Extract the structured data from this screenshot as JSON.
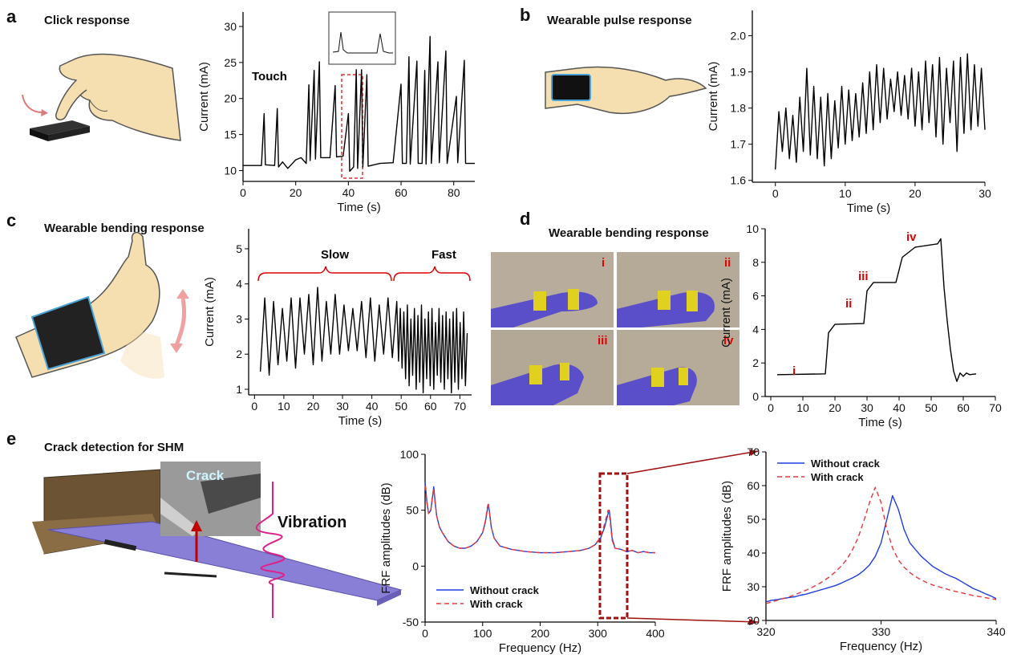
{
  "panels": [
    {
      "label": "a",
      "title": "Click response"
    },
    {
      "label": "b",
      "title": "Wearable pulse response"
    },
    {
      "label": "c",
      "title": "Wearable bending response"
    },
    {
      "label": "d",
      "title": "Wearable bending response"
    },
    {
      "label": "e",
      "title": "Crack detection for SHM"
    }
  ],
  "photo_labels": [
    "i",
    "ii",
    "iii",
    "iv"
  ],
  "illustration": {
    "crack": "Crack",
    "vibration": "Vibration"
  },
  "chart_data": [
    {
      "type": "line",
      "x_label": "Time (s)",
      "y_label": "Current (mA)",
      "annotations": [
        "Touch"
      ],
      "annotation_color": "#000000",
      "color": "#000000",
      "xlim": [
        0,
        88
      ],
      "ylim": [
        8.5,
        32
      ],
      "xticks": [
        0,
        20,
        40,
        60,
        80
      ],
      "yticks": [
        10,
        15,
        20,
        25,
        30
      ],
      "x": [
        0,
        7,
        8,
        8.5,
        12,
        13,
        13.5,
        15,
        17,
        20,
        22,
        24,
        25,
        25.5,
        27,
        27.5,
        29,
        29.5,
        33,
        35,
        35.5,
        38,
        40,
        40.5,
        42,
        43,
        43.5,
        45,
        45.5,
        47,
        47.5,
        52,
        57,
        60,
        60.5,
        62,
        63,
        63.5,
        66,
        66.5,
        68,
        69,
        69.5,
        71,
        71.5,
        74,
        74.5,
        77,
        77.5,
        81,
        81.5,
        84,
        84.5,
        88
      ],
      "values": [
        10.7,
        10.7,
        17.9,
        10.8,
        10.7,
        18.6,
        10.5,
        11.2,
        10.3,
        11.5,
        11.8,
        11.0,
        21.9,
        11.4,
        23.9,
        11.6,
        25.1,
        11.8,
        11.8,
        21.8,
        11.9,
        12.0,
        17.9,
        9.9,
        10.5,
        24.0,
        10.3,
        24.0,
        10.5,
        23.3,
        10.6,
        11.0,
        11.1,
        22.0,
        11.0,
        11.0,
        25.8,
        10.9,
        25.2,
        11.0,
        11.0,
        23.9,
        10.9,
        28.6,
        11.0,
        25.1,
        11.1,
        26.6,
        11.0,
        20.3,
        11.1,
        25.3,
        11.0,
        11.0
      ]
    },
    {
      "type": "line",
      "x_label": "Time (s)",
      "y_label": "Current (mA)",
      "color": "#000000",
      "xlim": [
        -3.3,
        30
      ],
      "ylim": [
        1.595,
        2.07
      ],
      "xticks": [
        0,
        10,
        20,
        30
      ],
      "yticks": [
        1.6,
        1.7,
        1.8,
        1.9,
        {
          "value": 2,
          "label": "2.0"
        }
      ],
      "x": [
        0,
        0.5,
        1,
        1.5,
        2,
        2.5,
        3,
        3.5,
        4,
        4.5,
        5,
        5.5,
        6,
        6.5,
        7,
        7.5,
        8,
        8.5,
        9,
        9.5,
        10,
        10.5,
        11,
        11.5,
        12,
        12.5,
        13,
        13.5,
        14,
        14.5,
        15,
        15.5,
        16,
        16.5,
        17,
        17.5,
        18,
        18.5,
        19,
        19.5,
        20,
        20.5,
        21,
        21.5,
        22,
        22.5,
        23,
        23.5,
        24,
        24.5,
        25,
        25.5,
        26,
        26.5,
        27,
        27.5,
        28,
        28.5,
        29,
        29.5,
        30
      ],
      "values": [
        1.63,
        1.79,
        1.68,
        1.8,
        1.66,
        1.78,
        1.65,
        1.83,
        1.68,
        1.91,
        1.67,
        1.86,
        1.66,
        1.83,
        1.64,
        1.84,
        1.66,
        1.82,
        1.69,
        1.86,
        1.7,
        1.85,
        1.71,
        1.84,
        1.72,
        1.87,
        1.73,
        1.9,
        1.74,
        1.92,
        1.76,
        1.91,
        1.77,
        1.88,
        1.79,
        1.9,
        1.78,
        1.89,
        1.77,
        1.91,
        1.75,
        1.9,
        1.74,
        1.93,
        1.76,
        1.92,
        1.72,
        1.94,
        1.7,
        1.91,
        1.76,
        1.93,
        1.68,
        1.94,
        1.73,
        1.95,
        1.74,
        1.92,
        1.75,
        1.91,
        1.74
      ]
    },
    {
      "type": "line",
      "x_label": "Time (s)",
      "y_label": "Current (mA)",
      "annotations": [
        "Slow",
        "Fast"
      ],
      "annotation_color": "#000000",
      "color": "#000000",
      "xlim": [
        -2,
        74
      ],
      "ylim": [
        0.84,
        5.57
      ],
      "xticks": [
        0,
        10,
        20,
        30,
        40,
        50,
        60,
        70
      ],
      "yticks": [
        1,
        2,
        3,
        4,
        5
      ],
      "x": [
        2,
        3.5,
        5,
        6.5,
        8,
        9.5,
        11,
        12.5,
        14,
        15.5,
        17,
        18.5,
        20,
        21.5,
        23,
        24.5,
        26,
        27.5,
        29,
        30.5,
        32,
        33.5,
        35,
        36.5,
        38,
        39.5,
        41,
        42.5,
        44,
        45.5,
        47,
        48.5,
        49.1,
        49.7,
        50.3,
        50.9,
        51.5,
        52.1,
        52.7,
        53.3,
        53.9,
        54.5,
        55.1,
        55.7,
        56.3,
        56.9,
        57.5,
        58.1,
        58.7,
        59.3,
        59.9,
        60.5,
        61.1,
        61.7,
        62.3,
        62.9,
        63.5,
        64.1,
        64.7,
        65.3,
        65.9,
        66.5,
        67.1,
        67.7,
        68.3,
        68.9,
        69.5,
        70.1,
        70.7,
        71.3,
        71.9,
        72.5
      ],
      "values": [
        1.5,
        3.6,
        1.4,
        3.5,
        1.7,
        3.3,
        1.8,
        3.6,
        1.6,
        3.6,
        2.0,
        3.7,
        1.7,
        3.9,
        1.8,
        3.5,
        2.0,
        3.7,
        2.0,
        3.4,
        2.1,
        3.3,
        2.1,
        3.5,
        1.9,
        3.6,
        1.8,
        3.4,
        2.0,
        3.6,
        1.9,
        3.5,
        1.8,
        3.3,
        1.6,
        3.2,
        1.3,
        3.4,
        1.1,
        3.0,
        1.4,
        3.3,
        1.0,
        3.1,
        1.2,
        3.4,
        0.9,
        3.0,
        1.3,
        3.2,
        1.1,
        3.3,
        1.0,
        2.9,
        1.4,
        3.3,
        1.2,
        3.1,
        1.0,
        3.2,
        1.3,
        3.0,
        0.9,
        3.2,
        1.2,
        3.3,
        1.0,
        2.9,
        1.3,
        3.2,
        1.1,
        2.6
      ]
    },
    {
      "type": "line",
      "x_label": "Time (s)",
      "y_label": "Current (mA)",
      "annotations": [
        "i",
        "ii",
        "iii",
        "iv"
      ],
      "annotation_color": "#e00000",
      "color": "#000000",
      "xlim": [
        -1.75,
        70
      ],
      "ylim": [
        0,
        10
      ],
      "xticks": [
        0,
        10,
        20,
        30,
        40,
        50,
        60,
        70
      ],
      "yticks": [
        0,
        2,
        4,
        6,
        8,
        10
      ],
      "x": [
        2,
        17,
        18,
        20,
        29,
        30,
        32,
        39,
        41,
        45,
        52,
        53,
        54,
        55,
        56,
        57,
        58,
        59,
        60,
        61,
        62,
        64
      ],
      "values": [
        1.3,
        1.35,
        3.8,
        4.3,
        4.35,
        6.3,
        6.8,
        6.8,
        8.3,
        8.9,
        9.1,
        9.4,
        6.5,
        4.5,
        2.8,
        1.5,
        0.9,
        1.4,
        1.2,
        1.4,
        1.3,
        1.35
      ]
    },
    {
      "type": "line",
      "x_label": "Frequency (Hz)",
      "y_label": "FRF amplitudes (dB)",
      "legend": "lower left",
      "xlim": [
        0,
        400
      ],
      "ylim": [
        -50,
        100
      ],
      "xticks": [
        0,
        100,
        200,
        300,
        400
      ],
      "yticks": [
        -50,
        0,
        50,
        100
      ],
      "x": [
        0,
        3,
        6,
        10,
        13,
        15,
        17,
        20,
        25,
        30,
        40,
        50,
        60,
        70,
        80,
        90,
        100,
        105,
        108,
        110,
        112,
        115,
        120,
        130,
        150,
        175,
        200,
        225,
        250,
        270,
        285,
        295,
        305,
        312,
        318,
        320,
        322,
        325,
        330,
        340,
        350,
        360,
        370,
        380,
        390,
        400
      ],
      "series": [
        {
          "name": "Without crack",
          "color": "#1f3fe0",
          "dashed": false,
          "values": [
            75,
            58,
            47,
            50,
            62,
            71,
            60,
            45,
            35,
            30,
            22,
            18,
            16,
            16,
            18,
            22,
            30,
            40,
            50,
            55,
            48,
            35,
            25,
            18,
            15,
            13,
            12,
            12,
            13,
            14,
            16,
            19,
            25,
            35,
            47,
            50,
            42,
            25,
            16,
            15,
            13,
            14,
            12,
            13,
            12,
            12
          ]
        },
        {
          "name": "With crack",
          "color": "#e8383d",
          "dashed": true,
          "values": [
            72,
            57,
            47,
            51,
            64,
            69,
            58,
            45,
            35,
            30,
            22,
            18,
            16,
            16,
            18,
            22,
            30,
            41,
            52,
            57,
            47,
            35,
            25,
            18,
            15,
            13,
            12,
            12,
            13,
            14,
            16,
            19,
            26,
            38,
            50,
            47,
            38,
            23,
            16,
            15,
            13,
            14,
            12,
            13,
            12,
            12
          ]
        }
      ]
    },
    {
      "type": "line",
      "x_label": "Frequency (Hz)",
      "y_label": "FRF amplitudes (dB)",
      "legend": "upper left",
      "xlim": [
        320,
        340
      ],
      "ylim": [
        20,
        70
      ],
      "xticks": [
        320,
        330,
        340
      ],
      "yticks": [
        20,
        30,
        40,
        50,
        60,
        70
      ],
      "x": [
        320,
        320.5,
        321,
        321.5,
        322,
        322.5,
        323,
        323.5,
        324,
        324.5,
        325,
        325.5,
        326,
        326.5,
        327,
        327.5,
        328,
        328.5,
        329,
        329.5,
        330,
        330.5,
        331,
        331.5,
        332,
        332.5,
        333,
        333.5,
        334,
        334.5,
        335,
        335.5,
        336,
        336.5,
        337,
        337.5,
        338,
        338.5,
        339,
        339.5,
        340
      ],
      "series": [
        {
          "name": "Without crack",
          "color": "#1f3fe0",
          "dashed": false,
          "values": [
            25.5,
            26,
            26.2,
            26.5,
            26.8,
            27,
            27.5,
            27.8,
            28.3,
            28.8,
            29.3,
            29.8,
            30.3,
            31,
            31.8,
            32.6,
            33.5,
            34.8,
            36.5,
            39,
            43,
            50,
            57,
            53,
            47,
            43,
            41,
            39,
            37.5,
            36,
            35,
            34,
            33.2,
            32.5,
            31.5,
            30.5,
            29.5,
            28.8,
            28,
            27.3,
            26.5
          ]
        },
        {
          "name": "With crack",
          "color": "#e8383d",
          "dashed": true,
          "values": [
            25,
            25.5,
            26,
            26.5,
            27,
            27.6,
            28.3,
            29,
            29.8,
            30.7,
            31.7,
            32.9,
            34.3,
            36,
            38,
            40.8,
            44.5,
            49.5,
            55,
            59.5,
            55,
            47,
            41.5,
            38,
            35.8,
            34.2,
            33,
            32,
            31.2,
            30.5,
            30,
            29.5,
            29,
            28.6,
            28.2,
            27.8,
            27.4,
            27.1,
            26.8,
            26.5,
            26.2
          ]
        }
      ]
    }
  ]
}
